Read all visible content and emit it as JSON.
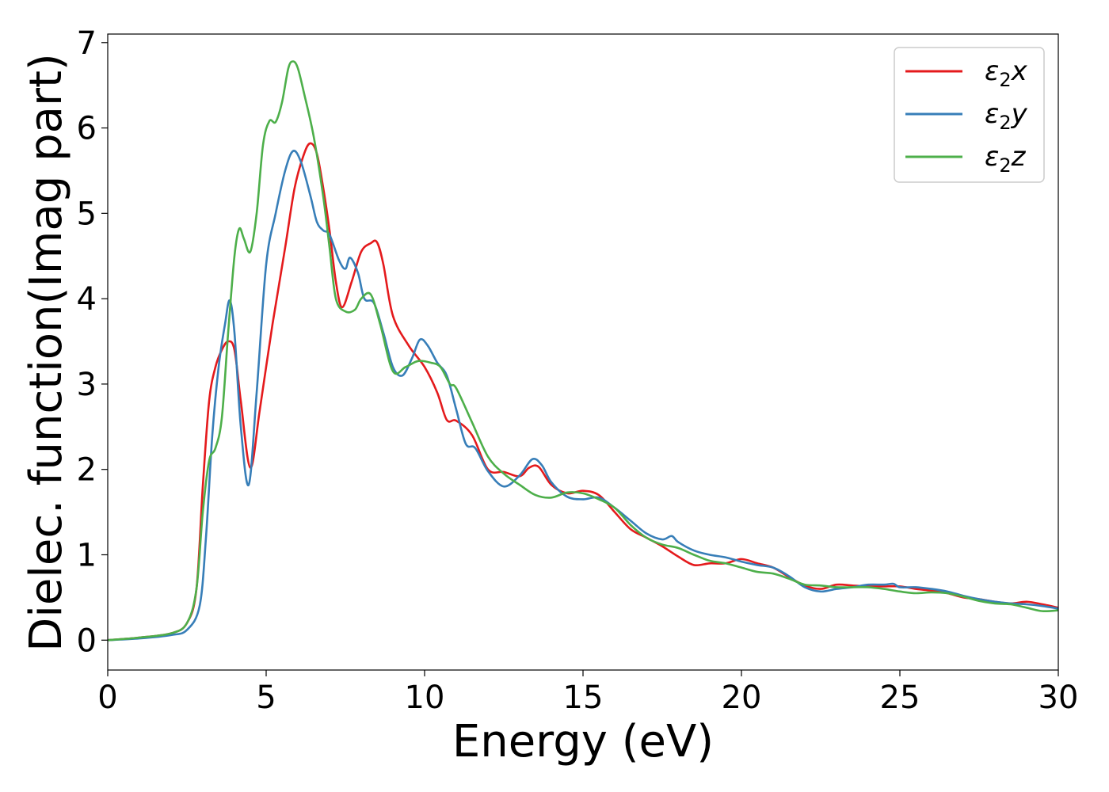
{
  "chart_data": {
    "type": "line",
    "xlabel": "Energy (eV)",
    "ylabel": "Dielec. function(Imag part)",
    "xlim": [
      0,
      30
    ],
    "ylim": [
      -0.35,
      7.1
    ],
    "xticks": [
      "0",
      "5",
      "10",
      "15",
      "20",
      "25",
      "30"
    ],
    "yticks": [
      "0",
      "1",
      "2",
      "3",
      "4",
      "5",
      "6",
      "7"
    ],
    "grid": false,
    "legend_position": "top-right",
    "series": [
      {
        "name": "ε₂x",
        "legend_main": "ε",
        "legend_sub": "2",
        "legend_suffix": "x",
        "color": "#e41a1c",
        "x": [
          0,
          1,
          2,
          2.5,
          2.8,
          3.0,
          3.2,
          3.4,
          3.6,
          3.8,
          4.0,
          4.2,
          4.5,
          4.8,
          5.2,
          5.6,
          5.9,
          6.2,
          6.4,
          6.6,
          6.8,
          7.0,
          7.2,
          7.4,
          7.7,
          8.0,
          8.3,
          8.5,
          8.7,
          9.0,
          9.5,
          10.0,
          10.4,
          10.7,
          11.0,
          11.5,
          12.0,
          12.5,
          13.0,
          13.3,
          13.6,
          14.0,
          14.5,
          15.0,
          15.5,
          16.0,
          16.5,
          17.0,
          17.5,
          18.0,
          18.5,
          19.0,
          19.5,
          20.0,
          20.5,
          21.0,
          21.5,
          22.0,
          22.5,
          23.0,
          23.5,
          24.0,
          24.5,
          25.0,
          25.5,
          26.0,
          26.5,
          27.0,
          27.5,
          28.0,
          28.5,
          29.0,
          29.5,
          30.0
        ],
        "y": [
          0.0,
          0.03,
          0.08,
          0.2,
          0.6,
          1.8,
          2.8,
          3.2,
          3.4,
          3.5,
          3.4,
          2.8,
          2.02,
          2.7,
          3.7,
          4.6,
          5.3,
          5.7,
          5.82,
          5.7,
          5.3,
          4.8,
          4.2,
          3.9,
          4.2,
          4.55,
          4.65,
          4.66,
          4.4,
          3.8,
          3.45,
          3.2,
          2.9,
          2.58,
          2.57,
          2.4,
          2.0,
          1.97,
          1.92,
          2.02,
          2.03,
          1.82,
          1.72,
          1.75,
          1.7,
          1.5,
          1.3,
          1.2,
          1.1,
          0.98,
          0.88,
          0.9,
          0.9,
          0.95,
          0.9,
          0.85,
          0.74,
          0.64,
          0.6,
          0.65,
          0.64,
          0.63,
          0.63,
          0.63,
          0.6,
          0.58,
          0.55,
          0.5,
          0.48,
          0.45,
          0.43,
          0.45,
          0.42,
          0.38
        ]
      },
      {
        "name": "ε₂y",
        "legend_main": "ε",
        "legend_sub": "2",
        "legend_suffix": "y",
        "color": "#377eb8",
        "x": [
          0,
          1,
          2,
          2.5,
          2.9,
          3.1,
          3.3,
          3.5,
          3.7,
          3.85,
          4.0,
          4.2,
          4.45,
          4.7,
          5.0,
          5.3,
          5.6,
          5.85,
          6.1,
          6.4,
          6.6,
          6.8,
          7.0,
          7.3,
          7.5,
          7.65,
          7.9,
          8.1,
          8.4,
          8.7,
          9.0,
          9.3,
          9.6,
          9.85,
          10.1,
          10.4,
          10.7,
          11.0,
          11.3,
          11.6,
          12.0,
          12.5,
          13.0,
          13.4,
          13.7,
          14.0,
          14.5,
          15.0,
          15.5,
          16.0,
          16.5,
          17.0,
          17.5,
          17.8,
          18.0,
          18.5,
          19.0,
          19.5,
          20.0,
          20.5,
          21.0,
          21.5,
          22.0,
          22.5,
          23.0,
          23.5,
          24.0,
          24.5,
          24.8,
          25.0,
          25.5,
          26.0,
          26.5,
          27.0,
          27.5,
          28.0,
          28.5,
          29.0,
          29.5,
          30.0
        ],
        "y": [
          0.0,
          0.02,
          0.06,
          0.12,
          0.4,
          1.2,
          2.4,
          3.2,
          3.7,
          3.98,
          3.6,
          2.5,
          1.82,
          2.9,
          4.4,
          5.0,
          5.5,
          5.73,
          5.6,
          5.2,
          4.9,
          4.8,
          4.75,
          4.45,
          4.35,
          4.48,
          4.3,
          4.0,
          3.95,
          3.6,
          3.2,
          3.1,
          3.3,
          3.52,
          3.45,
          3.25,
          3.1,
          2.7,
          2.3,
          2.25,
          1.98,
          1.8,
          1.93,
          2.12,
          2.05,
          1.85,
          1.68,
          1.65,
          1.67,
          1.55,
          1.4,
          1.25,
          1.18,
          1.22,
          1.15,
          1.05,
          1.0,
          0.97,
          0.92,
          0.88,
          0.85,
          0.75,
          0.62,
          0.57,
          0.6,
          0.62,
          0.65,
          0.65,
          0.66,
          0.62,
          0.62,
          0.6,
          0.57,
          0.52,
          0.48,
          0.45,
          0.43,
          0.42,
          0.4,
          0.37
        ]
      },
      {
        "name": "ε₂z",
        "legend_main": "ε",
        "legend_sub": "2",
        "legend_suffix": "z",
        "color": "#4daf4a",
        "x": [
          0,
          1,
          2,
          2.5,
          2.8,
          3.0,
          3.2,
          3.4,
          3.6,
          3.8,
          4.0,
          4.15,
          4.3,
          4.5,
          4.7,
          4.9,
          5.1,
          5.3,
          5.5,
          5.7,
          5.85,
          6.0,
          6.2,
          6.5,
          6.8,
          7.0,
          7.2,
          7.5,
          7.8,
          8.0,
          8.3,
          8.6,
          9.0,
          9.4,
          9.8,
          10.2,
          10.5,
          10.8,
          11.0,
          11.5,
          12.0,
          12.5,
          13.0,
          13.5,
          14.0,
          14.5,
          15.0,
          15.5,
          16.0,
          16.5,
          17.0,
          17.5,
          18.0,
          18.5,
          19.0,
          19.5,
          20.0,
          20.5,
          21.0,
          21.5,
          22.0,
          22.5,
          23.0,
          23.5,
          24.0,
          24.5,
          25.0,
          25.5,
          26.0,
          26.5,
          27.0,
          27.5,
          28.0,
          28.5,
          29.0,
          29.5,
          30.0
        ],
        "y": [
          0.0,
          0.03,
          0.08,
          0.2,
          0.6,
          1.5,
          2.1,
          2.25,
          2.6,
          3.6,
          4.5,
          4.82,
          4.7,
          4.55,
          5.0,
          5.8,
          6.08,
          6.07,
          6.3,
          6.7,
          6.78,
          6.7,
          6.4,
          5.9,
          5.2,
          4.6,
          4.0,
          3.85,
          3.87,
          4.0,
          4.05,
          3.7,
          3.15,
          3.2,
          3.27,
          3.25,
          3.2,
          3.0,
          2.95,
          2.55,
          2.15,
          1.95,
          1.82,
          1.7,
          1.67,
          1.73,
          1.72,
          1.65,
          1.55,
          1.35,
          1.2,
          1.12,
          1.08,
          1.0,
          0.93,
          0.9,
          0.85,
          0.8,
          0.78,
          0.72,
          0.65,
          0.64,
          0.62,
          0.62,
          0.62,
          0.6,
          0.57,
          0.55,
          0.56,
          0.55,
          0.51,
          0.46,
          0.43,
          0.42,
          0.38,
          0.34,
          0.35
        ]
      }
    ]
  }
}
